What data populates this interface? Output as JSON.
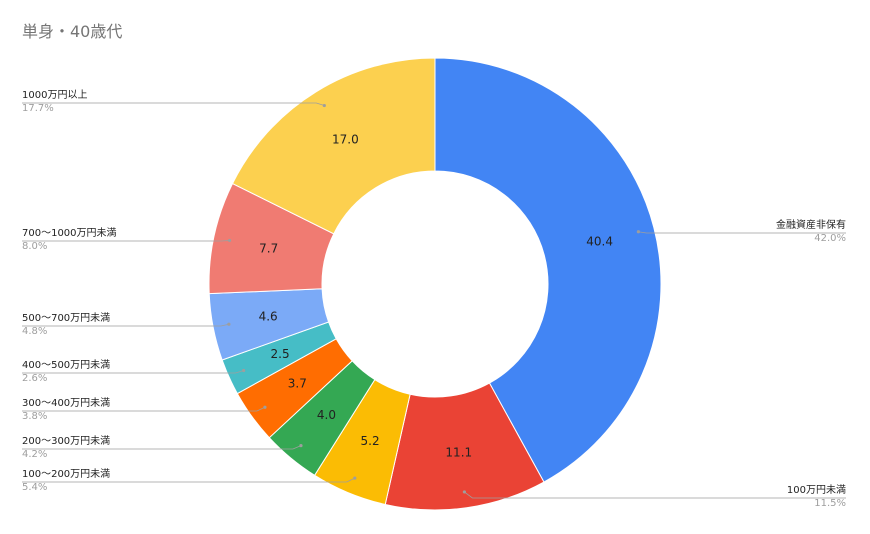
{
  "chart_data": {
    "type": "pie",
    "style": "donut",
    "title": "単身・40歳代",
    "slices": [
      {
        "label": "金融資産非保有",
        "value": 40.4,
        "value_label": "40.4",
        "percent_label": "42.0%",
        "color": "#4285f4"
      },
      {
        "label": "100万円未満",
        "value": 11.1,
        "value_label": "11.1",
        "percent_label": "11.5%",
        "color": "#ea4335"
      },
      {
        "label": "100～200万円未満",
        "value": 5.2,
        "value_label": "5.2",
        "percent_label": "5.4%",
        "color": "#fbbc04"
      },
      {
        "label": "200～300万円未満",
        "value": 4.0,
        "value_label": "4.0",
        "percent_label": "4.2%",
        "color": "#34a853"
      },
      {
        "label": "300～400万円未満",
        "value": 3.7,
        "value_label": "3.7",
        "percent_label": "3.8%",
        "color": "#ff6d01"
      },
      {
        "label": "400～500万円未満",
        "value": 2.5,
        "value_label": "2.5",
        "percent_label": "2.6%",
        "color": "#46bdc6"
      },
      {
        "label": "500～700万円未満",
        "value": 4.6,
        "value_label": "4.6",
        "percent_label": "4.8%",
        "color": "#7baaf7"
      },
      {
        "label": "700～1000万円未満",
        "value": 7.7,
        "value_label": "7.7",
        "percent_label": "8.0%",
        "color": "#f07b72"
      },
      {
        "label": "1000万円以上",
        "value": 17.0,
        "value_label": "17.0",
        "percent_label": "17.7%",
        "color": "#fcd04f"
      }
    ],
    "legend": "none"
  }
}
